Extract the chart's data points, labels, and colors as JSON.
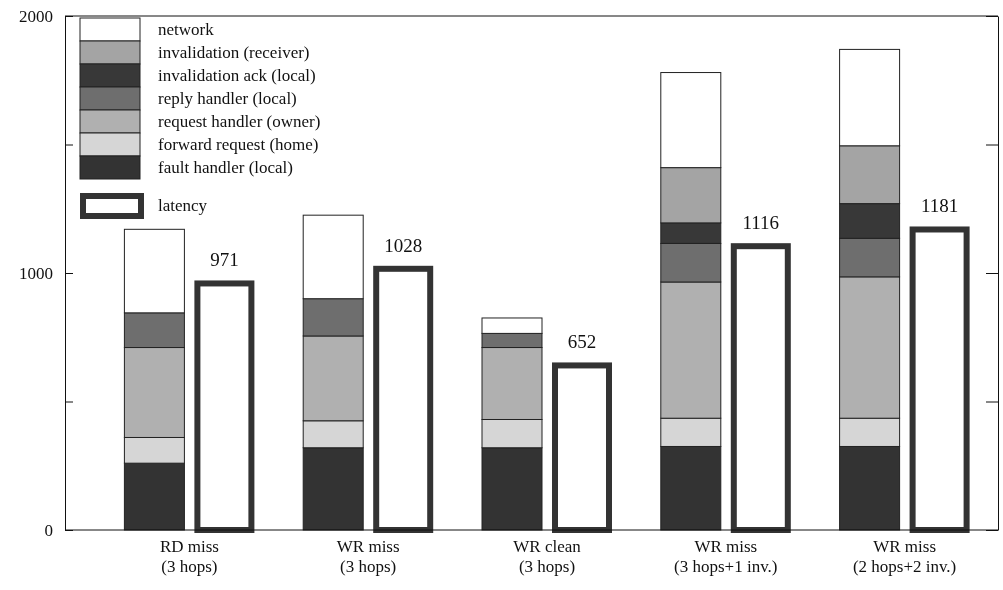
{
  "chart_data": {
    "type": "bar",
    "stacked": true,
    "categories": [
      "RD miss\n(3 hops)",
      "WR miss\n(3 hops)",
      "WR clean\n(3 hops)",
      "WR miss\n(3 hops+1 inv.)",
      "WR miss\n(2 hops+2 inv.)"
    ],
    "series": [
      {
        "name": "fault handler (local)",
        "color": "#333333",
        "values": [
          260,
          320,
          320,
          325,
          325
        ]
      },
      {
        "name": "forward request (home)",
        "color": "#d6d6d6",
        "values": [
          100,
          105,
          110,
          110,
          110
        ]
      },
      {
        "name": "request handler (owner)",
        "color": "#b0b0b0",
        "values": [
          350,
          330,
          280,
          530,
          550
        ]
      },
      {
        "name": "reply handler (local)",
        "color": "#6e6e6e",
        "values": [
          135,
          145,
          55,
          150,
          150
        ]
      },
      {
        "name": "invalidation ack (local)",
        "color": "#383838",
        "values": [
          0,
          0,
          0,
          80,
          135
        ]
      },
      {
        "name": "invalidation (receiver)",
        "color": "#a4a4a4",
        "values": [
          0,
          0,
          0,
          215,
          225
        ]
      },
      {
        "name": "network",
        "color": "#ffffff",
        "values": [
          325,
          325,
          60,
          370,
          375
        ]
      },
      {
        "name": "latency",
        "color": "#ffffff",
        "axis": "y2",
        "values": [
          971,
          1028,
          652,
          1116,
          1181
        ],
        "value_labels": [
          "971",
          "1028",
          "652",
          "1116",
          "1181"
        ]
      }
    ],
    "ylim": [
      0,
      2000
    ],
    "yticks": [
      0,
      {
        "value": 500,
        "label": null
      },
      1000,
      {
        "value": 1500,
        "label": null
      },
      2000
    ],
    "y2lim": [
      0,
      2000
    ],
    "legend": "top left",
    "grid": false
  }
}
